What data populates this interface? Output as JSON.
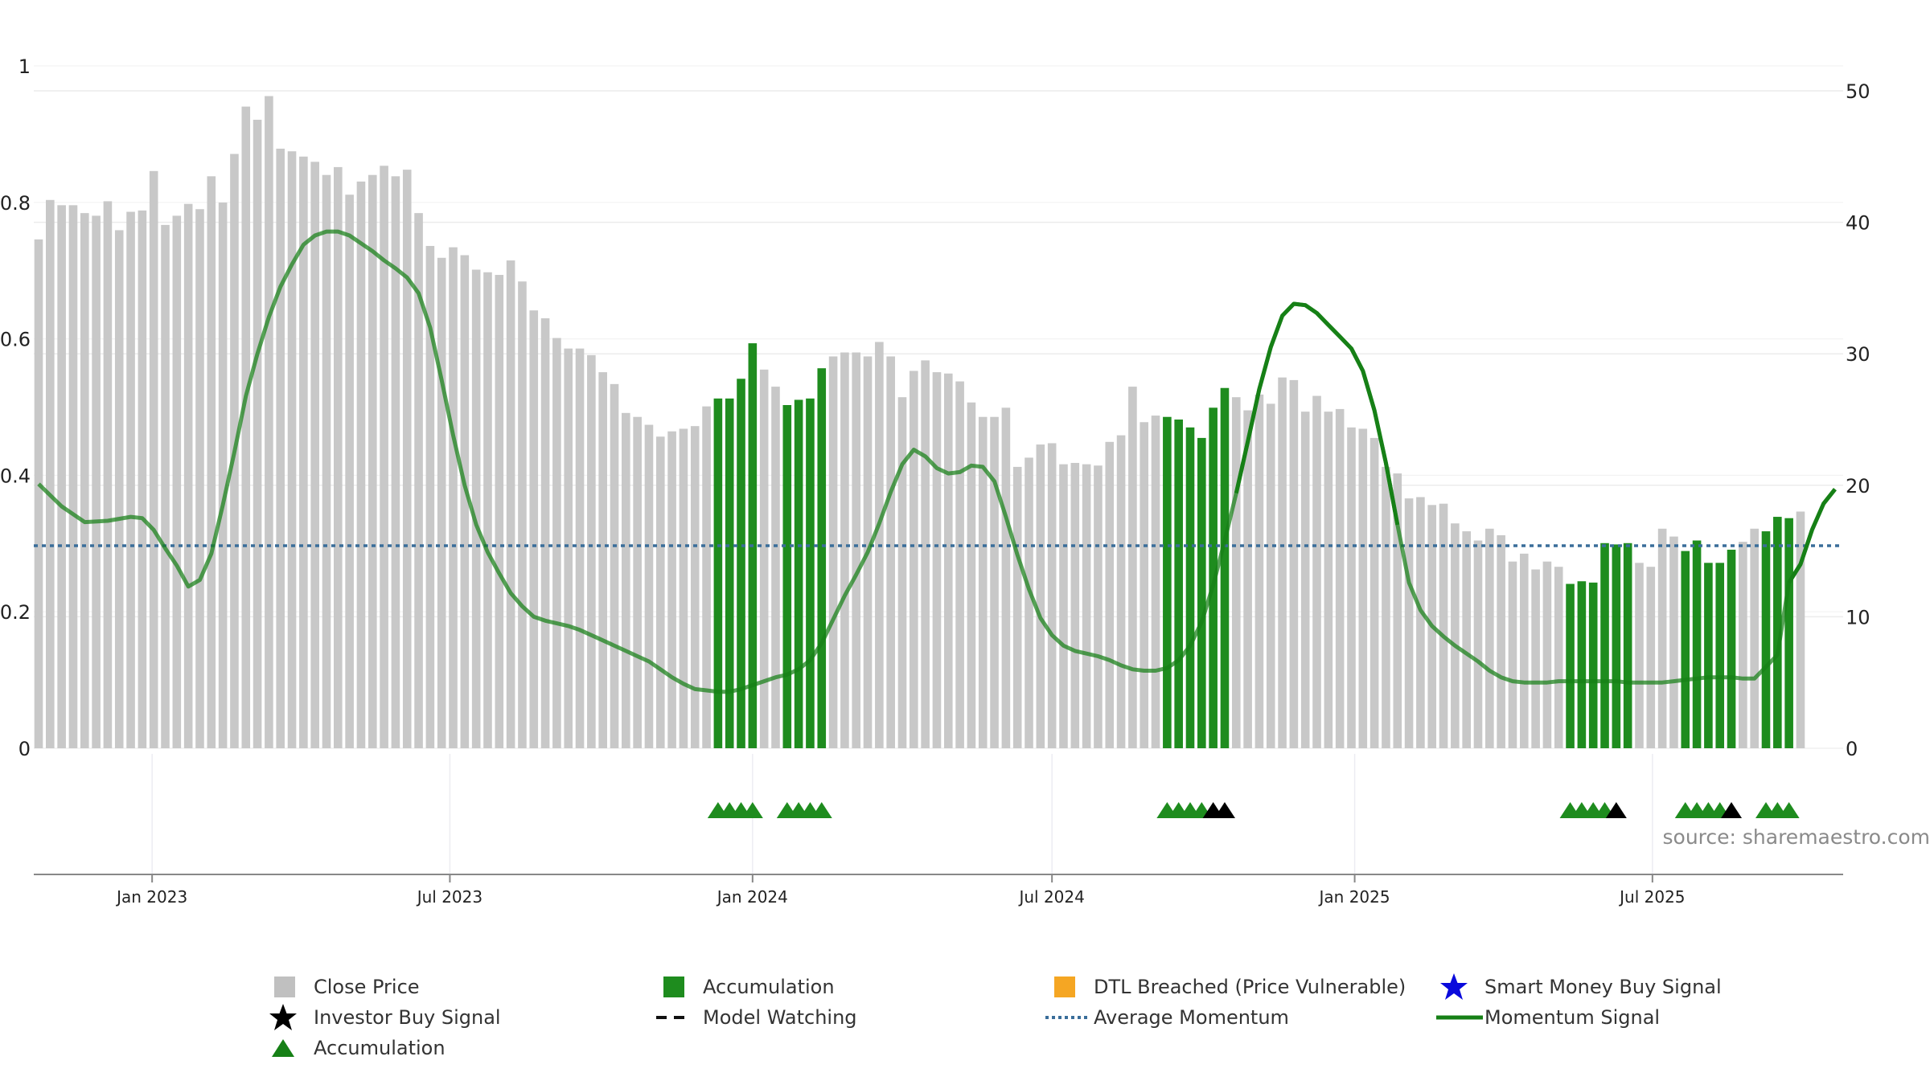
{
  "chart_data": {
    "type": "bar",
    "left_axis": {
      "ylim": [
        0,
        1
      ],
      "ticks": [
        "0",
        "0.2",
        "0.4",
        "0.6",
        "0.8",
        "1"
      ]
    },
    "right_axis": {
      "ylim": [
        0,
        50
      ],
      "ticks": [
        "0",
        "10",
        "20",
        "30",
        "40",
        "50"
      ]
    },
    "x_tick_labels": [
      "Jan 2023",
      "Jul 2023",
      "Jan 2024",
      "Jul 2024",
      "Jan 2025",
      "Jul 2025"
    ],
    "start_date": "2022-10-24",
    "week_step": 7,
    "close_price": [
      38.7,
      41.7,
      41.3,
      41.3,
      40.7,
      40.5,
      41.6,
      39.4,
      40.8,
      40.9,
      43.9,
      39.8,
      40.5,
      41.4,
      41.0,
      43.5,
      41.5,
      45.2,
      48.8,
      47.8,
      49.6,
      45.6,
      45.4,
      45.0,
      44.6,
      43.6,
      44.2,
      42.1,
      43.1,
      43.6,
      44.3,
      43.5,
      44.0,
      40.7,
      38.2,
      37.3,
      38.1,
      37.5,
      36.4,
      36.2,
      36.0,
      37.1,
      35.5,
      33.3,
      32.7,
      31.2,
      30.4,
      30.4,
      29.9,
      28.6,
      27.7,
      25.5,
      25.2,
      24.6,
      23.7,
      24.1,
      24.3,
      24.5,
      26.0,
      26.6,
      26.6,
      28.1,
      30.8,
      28.8,
      27.5,
      26.1,
      26.5,
      26.6,
      28.9,
      29.8,
      30.1,
      30.1,
      29.8,
      30.9,
      29.8,
      26.7,
      28.7,
      29.5,
      28.6,
      28.5,
      27.9,
      26.3,
      25.2,
      25.2,
      25.9,
      21.4,
      22.1,
      23.1,
      23.2,
      21.6,
      21.7,
      21.6,
      21.5,
      23.3,
      23.8,
      27.5,
      24.8,
      25.3,
      25.2,
      25.0,
      24.4,
      23.6,
      25.9,
      27.4,
      26.7,
      25.7,
      26.9,
      26.2,
      28.2,
      28.0,
      25.6,
      26.8,
      25.6,
      25.8,
      24.4,
      24.3,
      23.6,
      21.4,
      20.9,
      19.0,
      19.1,
      18.5,
      18.6,
      17.1,
      16.5,
      15.8,
      16.7,
      16.2,
      14.2,
      14.8,
      13.6,
      14.2,
      13.8,
      12.5,
      12.7,
      12.6,
      15.6,
      15.5,
      15.6,
      14.1,
      13.8,
      16.7,
      16.1,
      15.0,
      15.8,
      14.1,
      14.1,
      15.1,
      15.7,
      16.7,
      16.5,
      17.6,
      17.5,
      18.0
    ],
    "accumulation_bars": [
      59,
      60,
      61,
      62,
      65,
      66,
      67,
      68,
      98,
      99,
      100,
      101,
      102,
      103,
      133,
      134,
      135,
      136,
      137,
      138,
      143,
      144,
      145,
      146,
      147,
      150,
      151,
      152
    ],
    "accumulation_markers": [
      59,
      60,
      61,
      62,
      65,
      66,
      67,
      68,
      98,
      99,
      100,
      101,
      133,
      134,
      135,
      136,
      143,
      144,
      145,
      146,
      150,
      151,
      152
    ],
    "investor_buy_signals": [
      102,
      103,
      137,
      147
    ],
    "average_momentum": 15.4,
    "momentum_signal": [
      [
        0,
        20.1
      ],
      [
        2,
        18.4
      ],
      [
        4,
        17.2
      ],
      [
        6,
        17.3
      ],
      [
        8,
        17.6
      ],
      [
        9,
        17.5
      ],
      [
        10,
        16.6
      ],
      [
        11,
        15.2
      ],
      [
        12,
        13.9
      ],
      [
        13,
        12.3
      ],
      [
        14,
        12.8
      ],
      [
        15,
        14.8
      ],
      [
        16,
        18.5
      ],
      [
        17,
        22.5
      ],
      [
        18,
        26.8
      ],
      [
        19,
        30.0
      ],
      [
        20,
        32.8
      ],
      [
        21,
        35.1
      ],
      [
        22,
        36.8
      ],
      [
        23,
        38.3
      ],
      [
        24,
        39.0
      ],
      [
        25,
        39.3
      ],
      [
        26,
        39.3
      ],
      [
        27,
        39.0
      ],
      [
        28,
        38.4
      ],
      [
        29,
        37.8
      ],
      [
        30,
        37.1
      ],
      [
        31,
        36.5
      ],
      [
        32,
        35.8
      ],
      [
        33,
        34.6
      ],
      [
        34,
        32.0
      ],
      [
        35,
        28.0
      ],
      [
        36,
        23.8
      ],
      [
        37,
        20.0
      ],
      [
        38,
        17.0
      ],
      [
        39,
        14.9
      ],
      [
        40,
        13.3
      ],
      [
        41,
        11.8
      ],
      [
        42,
        10.8
      ],
      [
        43,
        10.0
      ],
      [
        44,
        9.7
      ],
      [
        45,
        9.5
      ],
      [
        46,
        9.3
      ],
      [
        47,
        9.0
      ],
      [
        48,
        8.6
      ],
      [
        49,
        8.2
      ],
      [
        50,
        7.8
      ],
      [
        51,
        7.4
      ],
      [
        52,
        7.0
      ],
      [
        53,
        6.6
      ],
      [
        54,
        6.0
      ],
      [
        55,
        5.4
      ],
      [
        56,
        4.9
      ],
      [
        57,
        4.5
      ],
      [
        58,
        4.4
      ],
      [
        59,
        4.3
      ],
      [
        60,
        4.3
      ],
      [
        61,
        4.5
      ],
      [
        62,
        4.8
      ],
      [
        63,
        5.1
      ],
      [
        64,
        5.4
      ],
      [
        65,
        5.6
      ],
      [
        66,
        6.0
      ],
      [
        67,
        6.7
      ],
      [
        68,
        8.0
      ],
      [
        69,
        9.8
      ],
      [
        70,
        11.6
      ],
      [
        71,
        13.2
      ],
      [
        72,
        14.9
      ],
      [
        73,
        17.1
      ],
      [
        74,
        19.5
      ],
      [
        75,
        21.6
      ],
      [
        76,
        22.7
      ],
      [
        77,
        22.2
      ],
      [
        78,
        21.3
      ],
      [
        79,
        20.9
      ],
      [
        80,
        21.0
      ],
      [
        81,
        21.5
      ],
      [
        82,
        21.4
      ],
      [
        83,
        20.3
      ],
      [
        84,
        17.6
      ],
      [
        85,
        14.7
      ],
      [
        86,
        12.1
      ],
      [
        87,
        9.9
      ],
      [
        88,
        8.6
      ],
      [
        89,
        7.8
      ],
      [
        90,
        7.4
      ],
      [
        91,
        7.2
      ],
      [
        92,
        7.0
      ],
      [
        93,
        6.7
      ],
      [
        94,
        6.3
      ],
      [
        95,
        6.0
      ],
      [
        96,
        5.9
      ],
      [
        97,
        5.9
      ],
      [
        98,
        6.1
      ],
      [
        99,
        6.7
      ],
      [
        100,
        7.8
      ],
      [
        101,
        9.6
      ],
      [
        102,
        12.4
      ],
      [
        103,
        15.8
      ],
      [
        104,
        19.4
      ],
      [
        105,
        23.3
      ],
      [
        106,
        27.3
      ],
      [
        107,
        30.5
      ],
      [
        108,
        32.9
      ],
      [
        109,
        33.8
      ],
      [
        110,
        33.7
      ],
      [
        111,
        33.1
      ],
      [
        112,
        32.2
      ],
      [
        113,
        31.3
      ],
      [
        114,
        30.4
      ],
      [
        115,
        28.7
      ],
      [
        116,
        25.7
      ],
      [
        117,
        21.7
      ],
      [
        118,
        17.0
      ],
      [
        119,
        12.6
      ],
      [
        120,
        10.5
      ],
      [
        121,
        9.3
      ],
      [
        122,
        8.5
      ],
      [
        123,
        7.8
      ],
      [
        124,
        7.2
      ],
      [
        125,
        6.6
      ],
      [
        126,
        5.9
      ],
      [
        127,
        5.4
      ],
      [
        128,
        5.1
      ],
      [
        129,
        5.0
      ],
      [
        130,
        5.0
      ],
      [
        131,
        5.0
      ],
      [
        132,
        5.1
      ],
      [
        133,
        5.1
      ],
      [
        134,
        5.1
      ],
      [
        135,
        5.1
      ],
      [
        136,
        5.1
      ],
      [
        137,
        5.1
      ],
      [
        138,
        5.0
      ],
      [
        139,
        5.0
      ],
      [
        140,
        5.0
      ],
      [
        141,
        5.0
      ],
      [
        142,
        5.1
      ],
      [
        143,
        5.2
      ],
      [
        144,
        5.3
      ],
      [
        145,
        5.4
      ],
      [
        146,
        5.4
      ],
      [
        147,
        5.4
      ],
      [
        148,
        5.3
      ],
      [
        149,
        5.3
      ],
      [
        150,
        6.2
      ],
      [
        151,
        7.1
      ],
      [
        152,
        12.6
      ],
      [
        153,
        14.0
      ],
      [
        154,
        16.6
      ],
      [
        155,
        18.6
      ],
      [
        156,
        19.7
      ]
    ],
    "momentum_highlight_ranges": [
      [
        104,
        118
      ],
      [
        152,
        156
      ]
    ]
  },
  "source_text": "source: sharemaestro.com",
  "legend": [
    {
      "label": "Close Price",
      "symbol": "gray-square-icon"
    },
    {
      "label": "Accumulation",
      "symbol": "green-square-icon"
    },
    {
      "label": "DTL Breached (Price Vulnerable)",
      "symbol": "orange-square-icon"
    },
    {
      "label": "Smart Money Buy Signal",
      "symbol": "blue-star-icon"
    },
    {
      "label": "Investor Buy Signal",
      "symbol": "black-star-icon"
    },
    {
      "label": "Model Watching",
      "symbol": "dashed-line-icon"
    },
    {
      "label": "Average Momentum",
      "symbol": "dotted-line-icon"
    },
    {
      "label": "Momentum Signal",
      "symbol": "green-line-icon"
    },
    {
      "label": "Accumulation",
      "symbol": "green-triangle-icon"
    }
  ],
  "colors": {
    "close_price": "#c8c8c8",
    "accumulation": "#1e8c1e",
    "dtl_breached": "#f5a623",
    "smart_money": "#0a0adc",
    "investor": "#000000",
    "average_momentum": "#3a6e9a",
    "momentum_signal": "#168016",
    "grid": "#ececec"
  }
}
